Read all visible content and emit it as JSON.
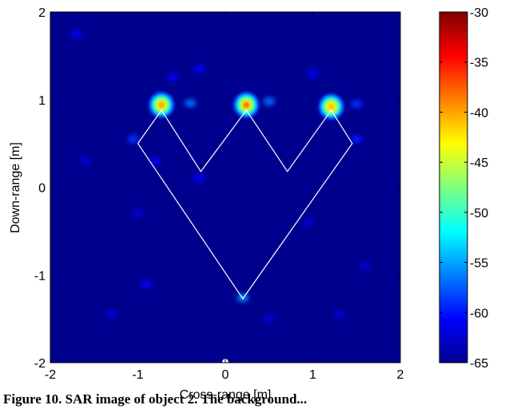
{
  "chart_data": {
    "type": "heatmap",
    "title": "",
    "xlabel": "Cross-range [m]",
    "ylabel": "Down-range [m]",
    "xlim": [
      -2,
      2
    ],
    "ylim": [
      -2,
      2
    ],
    "xticks": [
      -2,
      -1,
      0,
      1,
      2
    ],
    "yticks": [
      -2,
      -1,
      0,
      1,
      2
    ],
    "xtick_labels": [
      "-2",
      "-1",
      "0",
      "1",
      "2"
    ],
    "ytick_labels": [
      "-2",
      "-1",
      "0",
      "1",
      "2"
    ],
    "colorbar": {
      "colormap": "jet",
      "clim": [
        -65,
        -30
      ],
      "ticks": [
        -30,
        -35,
        -40,
        -45,
        -50,
        -55,
        -60,
        -65
      ],
      "tick_labels": [
        "-30",
        "-35",
        "-40",
        "-45",
        "-50",
        "-55",
        "-60",
        "-65"
      ],
      "placement": "right"
    },
    "background_level": -65,
    "strong_scatterers": [
      {
        "x": -0.73,
        "y": 0.94,
        "level": -40
      },
      {
        "x": 0.24,
        "y": 0.94,
        "level": -38
      },
      {
        "x": 1.21,
        "y": 0.92,
        "level": -41
      }
    ],
    "weak_scatterers": [
      {
        "x": -0.4,
        "y": 0.96,
        "level": -57
      },
      {
        "x": 0.5,
        "y": 0.98,
        "level": -57
      },
      {
        "x": 1.5,
        "y": 0.95,
        "level": -59
      },
      {
        "x": 0.2,
        "y": -1.26,
        "level": -56
      },
      {
        "x": -1.05,
        "y": 0.55,
        "level": -59
      },
      {
        "x": 1.5,
        "y": 0.55,
        "level": -60
      },
      {
        "x": -0.8,
        "y": 0.3,
        "level": -61
      },
      {
        "x": -0.3,
        "y": 0.1,
        "level": -61
      },
      {
        "x": -0.6,
        "y": 1.25,
        "level": -61
      },
      {
        "x": -0.3,
        "y": 1.35,
        "level": -61
      },
      {
        "x": 1.0,
        "y": 1.3,
        "level": -61
      },
      {
        "x": -1.7,
        "y": 1.75,
        "level": -61
      },
      {
        "x": -1.6,
        "y": 0.3,
        "level": -62
      },
      {
        "x": -1.0,
        "y": -0.3,
        "level": -62
      },
      {
        "x": 1.6,
        "y": -0.9,
        "level": -62
      },
      {
        "x": -0.9,
        "y": -1.1,
        "level": -61
      },
      {
        "x": -1.3,
        "y": -1.45,
        "level": -62
      },
      {
        "x": 0.5,
        "y": -1.5,
        "level": -62
      },
      {
        "x": 1.3,
        "y": -1.45,
        "level": -62
      },
      {
        "x": 0.95,
        "y": -0.4,
        "level": -62
      }
    ],
    "outline": {
      "color": "#ffffff",
      "points": [
        [
          -1.0,
          0.5
        ],
        [
          -0.73,
          0.88
        ],
        [
          -0.28,
          0.18
        ],
        [
          0.24,
          0.88
        ],
        [
          0.71,
          0.18
        ],
        [
          1.21,
          0.88
        ],
        [
          1.45,
          0.5
        ],
        [
          0.2,
          -1.27
        ],
        [
          -1.0,
          0.5
        ]
      ]
    },
    "radar_marker": {
      "x": 0.0,
      "y": -2.0,
      "color": "#ffffff"
    }
  },
  "caption": "Figure 10. SAR image of object 2. The background..."
}
